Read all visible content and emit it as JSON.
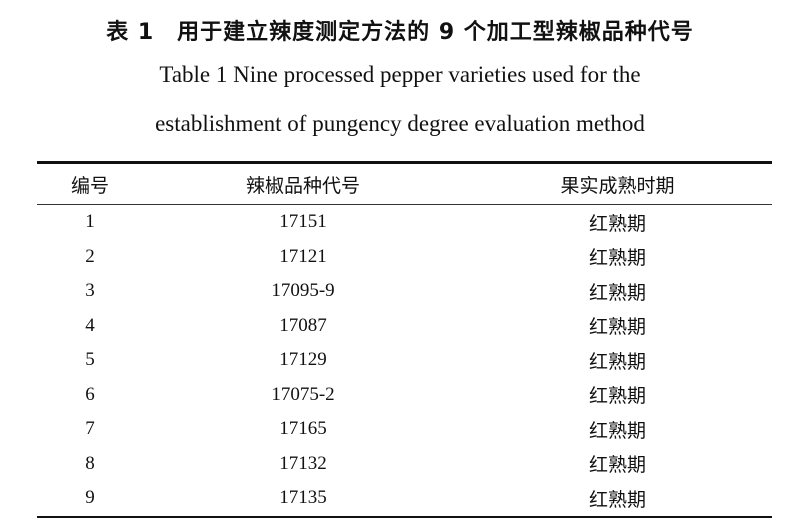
{
  "title_cn": "表 1　用于建立辣度测定方法的 9 个加工型辣椒品种代号",
  "title_en_line1": "Table 1 Nine processed pepper varieties used for the",
  "title_en_line2": "establishment of pungency degree evaluation method",
  "table": {
    "headers": [
      "编号",
      "辣椒品种代号",
      "果实成熟时期"
    ],
    "rows": [
      [
        "1",
        "17151",
        "红熟期"
      ],
      [
        "2",
        "17121",
        "红熟期"
      ],
      [
        "3",
        "17095-9",
        "红熟期"
      ],
      [
        "4",
        "17087",
        "红熟期"
      ],
      [
        "5",
        "17129",
        "红熟期"
      ],
      [
        "6",
        "17075-2",
        "红熟期"
      ],
      [
        "7",
        "17165",
        "红熟期"
      ],
      [
        "8",
        "17132",
        "红熟期"
      ],
      [
        "9",
        "17135",
        "红熟期"
      ]
    ]
  }
}
